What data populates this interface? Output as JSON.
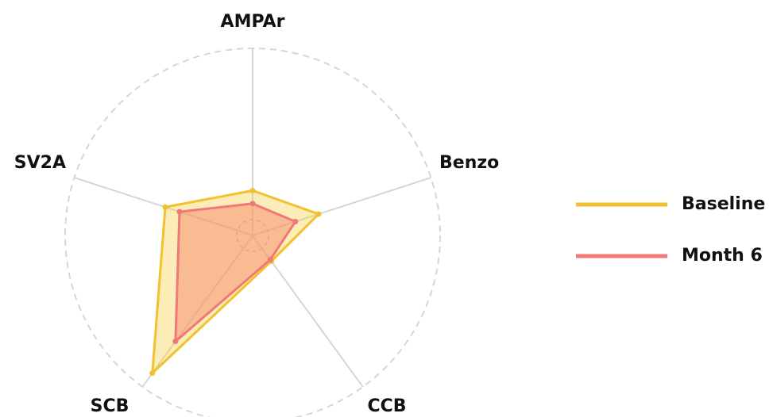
{
  "chart_data": {
    "type": "radar",
    "categories": [
      "AMPAr",
      "Benzo",
      "CCB",
      "SCB",
      "SV2A"
    ],
    "rlim": [
      0,
      1
    ],
    "series": [
      {
        "name": "Baseline",
        "color": "#f2c12e",
        "values": [
          0.24,
          0.37,
          0.17,
          0.91,
          0.49
        ]
      },
      {
        "name": "Month 6",
        "color": "#f07878",
        "values": [
          0.17,
          0.24,
          0.16,
          0.7,
          0.41
        ]
      }
    ],
    "legend": "right"
  }
}
